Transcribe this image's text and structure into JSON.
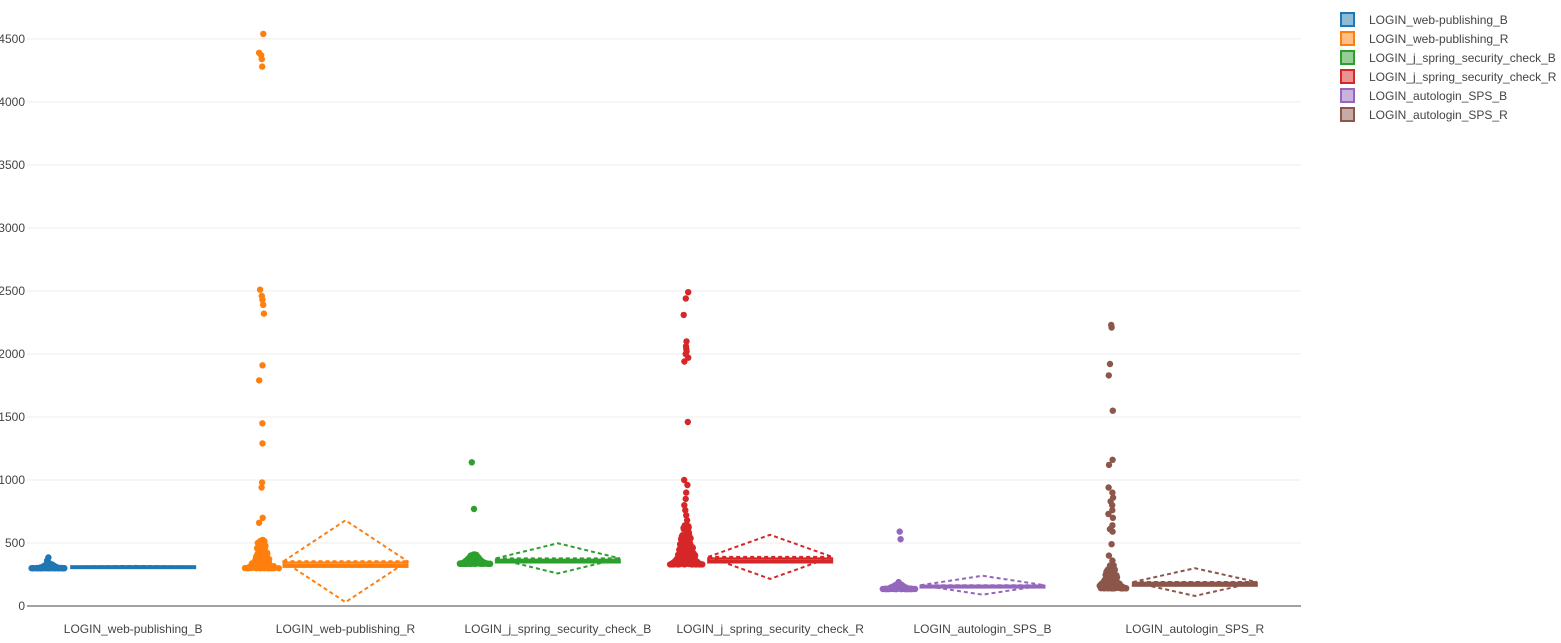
{
  "chart_data": {
    "type": "box",
    "title": "",
    "xlabel": "",
    "ylabel": "",
    "ylim": [
      0,
      4650
    ],
    "yticks": [
      0,
      500,
      1000,
      1500,
      2000,
      2500,
      3000,
      3500,
      4000,
      4500
    ],
    "grid": true,
    "legend_position": "top-right",
    "series": [
      {
        "name": "LOGIN_web-publishing_B",
        "color": "#1f77b4",
        "box": {
          "q1": 305,
          "median": 310,
          "q3": 316,
          "mean": 313,
          "sd": 5
        },
        "points": {
          "dense_min": 300,
          "dense_max": 330,
          "outliers": [
            345,
            360,
            385
          ]
        }
      },
      {
        "name": "LOGIN_web-publishing_R",
        "color": "#ff7f0e",
        "box": {
          "q1": 310,
          "median": 325,
          "q3": 345,
          "mean": 355,
          "sd": 325
        },
        "points": {
          "dense_min": 300,
          "dense_max": 540,
          "outliers": [
            660,
            700,
            940,
            980,
            1290,
            1450,
            1790,
            1910,
            2320,
            2390,
            2430,
            2460,
            2510,
            4280,
            4340,
            4370,
            4390,
            4540
          ]
        }
      },
      {
        "name": "LOGIN_j_spring_security_check_B",
        "color": "#2ca02c",
        "box": {
          "q1": 345,
          "median": 355,
          "q3": 368,
          "mean": 378,
          "sd": 120
        },
        "points": {
          "dense_min": 335,
          "dense_max": 410,
          "outliers": [
            770,
            1140
          ]
        }
      },
      {
        "name": "LOGIN_j_spring_security_check_R",
        "color": "#d62728",
        "box": {
          "q1": 345,
          "median": 360,
          "q3": 378,
          "mean": 390,
          "sd": 175
        },
        "points": {
          "dense_min": 330,
          "dense_max": 650,
          "outliers": [
            680,
            720,
            760,
            800,
            850,
            900,
            960,
            1000,
            1460,
            1940,
            1970,
            2000,
            2020,
            2040,
            2060,
            2100,
            2310,
            2440,
            2490
          ]
        }
      },
      {
        "name": "LOGIN_autologin_SPS_B",
        "color": "#9467bd",
        "box": {
          "q1": 148,
          "median": 155,
          "q3": 162,
          "mean": 165,
          "sd": 75
        },
        "points": {
          "dense_min": 135,
          "dense_max": 170,
          "outliers": [
            190,
            530,
            590
          ]
        }
      },
      {
        "name": "LOGIN_autologin_SPS_R",
        "color": "#8c564b",
        "box": {
          "q1": 160,
          "median": 172,
          "q3": 185,
          "mean": 190,
          "sd": 110
        },
        "points": {
          "dense_min": 140,
          "dense_max": 330,
          "outliers": [
            360,
            400,
            490,
            590,
            610,
            640,
            700,
            730,
            760,
            800,
            830,
            860,
            900,
            940,
            1120,
            1160,
            1550,
            1830,
            1920,
            2210,
            2230
          ]
        }
      }
    ]
  }
}
